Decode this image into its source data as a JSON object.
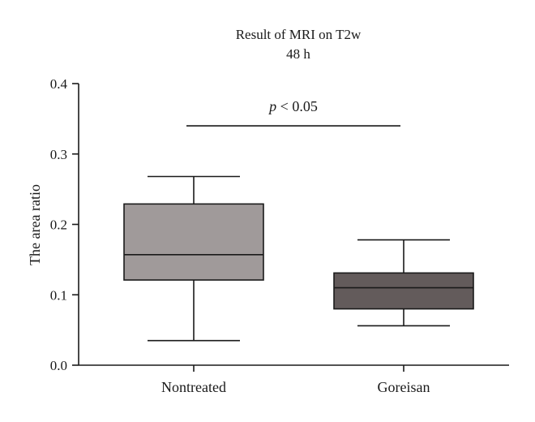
{
  "chart_data": {
    "type": "box",
    "title": "Result of MRI on T2w",
    "subtitle": "48 h",
    "ylabel": "The area ratio",
    "xlabel": "",
    "ylim": [
      0.0,
      0.4
    ],
    "yticks": [
      "0.0",
      "0.1",
      "0.2",
      "0.3",
      "0.4"
    ],
    "categories": [
      "Nontreated",
      "Goreisan"
    ],
    "boxes": [
      {
        "category": "Nontreated",
        "min": 0.035,
        "q1": 0.121,
        "median": 0.157,
        "q3": 0.229,
        "max": 0.268,
        "color": "#a09a9a"
      },
      {
        "category": "Goreisan",
        "min": 0.056,
        "q1": 0.08,
        "median": 0.11,
        "q3": 0.131,
        "max": 0.178,
        "color": "#635b5b"
      }
    ],
    "annotation": {
      "italic_part": "p",
      "rest": " < 0.05",
      "y": 0.34,
      "from": "Nontreated",
      "to": "Goreisan"
    }
  }
}
